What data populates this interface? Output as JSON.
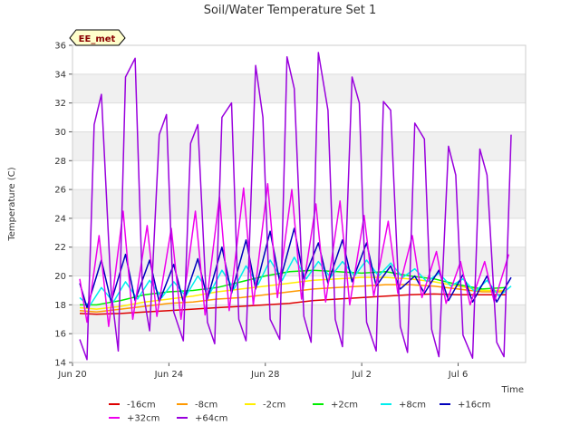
{
  "chart_data": {
    "type": "line",
    "title": "Soil/Water Temperature Set 1",
    "xlabel": "Time",
    "ylabel": "Temperature (C)",
    "badge": "EE_met",
    "x_unit": "days since Jun 20",
    "xlim": [
      0,
      18.8
    ],
    "ylim": [
      14,
      36
    ],
    "yticks": [
      14,
      16,
      18,
      20,
      22,
      24,
      26,
      28,
      30,
      32,
      34,
      36
    ],
    "xticks": [
      {
        "value": 0,
        "label": "Jun 20"
      },
      {
        "value": 4,
        "label": "Jun 24"
      },
      {
        "value": 8,
        "label": "Jun 28"
      },
      {
        "value": 12,
        "label": "Jul 2"
      },
      {
        "value": 16,
        "label": "Jul 6"
      }
    ],
    "grid": true,
    "legend_position": "bottom",
    "series": [
      {
        "name": "-16cm",
        "color": "#dd0000",
        "width": 1.5,
        "x": [
          0.3,
          1,
          2,
          3,
          4,
          5,
          6,
          7,
          8,
          9,
          10,
          11,
          12,
          13,
          14,
          15,
          16,
          17,
          18
        ],
        "y": [
          17.4,
          17.35,
          17.4,
          17.5,
          17.6,
          17.7,
          17.8,
          17.9,
          18.0,
          18.1,
          18.3,
          18.4,
          18.5,
          18.6,
          18.7,
          18.75,
          18.7,
          18.7,
          18.7
        ]
      },
      {
        "name": "-8cm",
        "color": "#ff9900",
        "width": 1.5,
        "x": [
          0.3,
          1,
          2,
          3,
          4,
          5,
          6,
          7,
          8,
          9,
          10,
          11,
          12,
          13,
          14,
          15,
          16,
          17,
          18
        ],
        "y": [
          17.6,
          17.5,
          17.7,
          17.9,
          18.1,
          18.2,
          18.4,
          18.5,
          18.7,
          18.9,
          19.1,
          19.2,
          19.3,
          19.4,
          19.4,
          19.3,
          19.1,
          18.9,
          18.9
        ]
      },
      {
        "name": "-2cm",
        "color": "#ffee00",
        "width": 1.5,
        "x": [
          0.3,
          1,
          2,
          3,
          4,
          5,
          6,
          7,
          8,
          9,
          10,
          11,
          12,
          13,
          14,
          15,
          16,
          17,
          18
        ],
        "y": [
          17.8,
          17.7,
          17.9,
          18.2,
          18.4,
          18.6,
          18.9,
          19.1,
          19.3,
          19.5,
          19.7,
          19.8,
          19.9,
          19.9,
          19.8,
          19.6,
          19.3,
          19.0,
          19.0
        ]
      },
      {
        "name": "+2cm",
        "color": "#00ee00",
        "width": 1.5,
        "x": [
          0.3,
          1,
          2,
          3,
          4,
          5,
          6,
          7,
          8,
          9,
          10,
          11,
          12,
          13,
          14,
          15,
          16,
          17,
          18
        ],
        "y": [
          18.0,
          18.0,
          18.3,
          18.7,
          18.9,
          19.0,
          19.2,
          19.6,
          20.0,
          20.3,
          20.4,
          20.3,
          20.2,
          20.3,
          20.0,
          19.8,
          19.4,
          19.1,
          19.2
        ]
      },
      {
        "name": "+8cm",
        "color": "#00eeee",
        "width": 1.5,
        "x": [
          0.3,
          0.7,
          1.2,
          1.7,
          2.2,
          2.7,
          3.2,
          3.7,
          4.2,
          4.7,
          5.2,
          5.7,
          6.2,
          6.7,
          7.2,
          7.7,
          8.2,
          8.7,
          9.2,
          9.7,
          10.2,
          10.7,
          11.2,
          11.7,
          12.2,
          12.7,
          13.2,
          13.7,
          14.2,
          14.7,
          15.2,
          15.7,
          16.2,
          16.7,
          17.2,
          17.7,
          18.2
        ],
        "y": [
          18.5,
          17.9,
          19.2,
          18.2,
          19.6,
          18.4,
          19.7,
          18.5,
          19.6,
          18.6,
          20.0,
          18.8,
          20.4,
          19.1,
          20.7,
          19.4,
          21.1,
          19.7,
          21.3,
          19.8,
          21.0,
          19.9,
          21.0,
          20.0,
          21.1,
          20.0,
          20.9,
          19.9,
          20.5,
          19.6,
          20.2,
          19.3,
          19.8,
          18.9,
          19.7,
          18.6,
          19.3
        ]
      },
      {
        "name": "+16cm",
        "color": "#0000bb",
        "width": 1.5,
        "x": [
          0.3,
          0.6,
          1.2,
          1.6,
          2.2,
          2.6,
          3.2,
          3.6,
          4.2,
          4.6,
          5.2,
          5.6,
          6.2,
          6.6,
          7.2,
          7.6,
          8.2,
          8.6,
          9.2,
          9.6,
          10.2,
          10.6,
          11.2,
          11.6,
          12.2,
          12.6,
          13.2,
          13.6,
          14.2,
          14.6,
          15.2,
          15.6,
          16.2,
          16.6,
          17.2,
          17.6,
          18.2
        ],
        "y": [
          19.5,
          17.8,
          21.1,
          18.2,
          21.5,
          18.3,
          21.1,
          18.2,
          20.8,
          18.2,
          21.2,
          18.4,
          22.0,
          18.8,
          22.5,
          19.1,
          23.1,
          19.6,
          23.3,
          19.8,
          22.3,
          19.5,
          22.5,
          19.6,
          22.3,
          19.3,
          20.7,
          19.1,
          20.0,
          18.8,
          20.4,
          18.3,
          20.1,
          18.2,
          20.0,
          18.2,
          19.9
        ]
      },
      {
        "name": "+32cm",
        "color": "#ee00ee",
        "width": 1.5,
        "x": [
          0.3,
          0.6,
          1.1,
          1.5,
          2.1,
          2.5,
          3.1,
          3.5,
          4.1,
          4.5,
          5.1,
          5.5,
          6.1,
          6.5,
          7.1,
          7.5,
          8.1,
          8.5,
          9.1,
          9.5,
          10.1,
          10.5,
          11.1,
          11.5,
          12.1,
          12.5,
          13.1,
          13.5,
          14.1,
          14.5,
          15.1,
          15.5,
          16.1,
          16.5,
          17.1,
          17.5,
          18.1
        ],
        "y": [
          19.8,
          16.8,
          22.8,
          16.5,
          24.5,
          17.0,
          23.5,
          17.2,
          23.3,
          17.0,
          24.5,
          17.3,
          25.5,
          17.6,
          26.1,
          18.0,
          26.4,
          18.5,
          26.0,
          18.4,
          25.0,
          18.2,
          25.2,
          18.0,
          24.2,
          18.6,
          23.8,
          18.8,
          22.8,
          18.5,
          21.7,
          18.1,
          21.0,
          18.0,
          21.0,
          18.2,
          21.5
        ]
      },
      {
        "name": "+64cm",
        "color": "#9900dd",
        "width": 1.5,
        "x": [
          0.3,
          0.6,
          0.9,
          1.2,
          1.6,
          1.9,
          2.2,
          2.6,
          2.9,
          3.2,
          3.6,
          3.9,
          4.2,
          4.6,
          4.9,
          5.2,
          5.6,
          5.9,
          6.2,
          6.6,
          6.9,
          7.2,
          7.6,
          7.9,
          8.2,
          8.6,
          8.9,
          9.2,
          9.6,
          9.9,
          10.2,
          10.6,
          10.9,
          11.2,
          11.6,
          11.9,
          12.2,
          12.6,
          12.9,
          13.2,
          13.6,
          13.9,
          14.2,
          14.6,
          14.9,
          15.2,
          15.6,
          15.9,
          16.2,
          16.6,
          16.9,
          17.2,
          17.6,
          17.9,
          18.2
        ],
        "y": [
          15.6,
          14.2,
          30.5,
          32.6,
          19.0,
          14.8,
          33.8,
          35.1,
          19.2,
          16.2,
          29.8,
          31.2,
          17.5,
          15.5,
          29.2,
          30.5,
          16.8,
          15.3,
          31.0,
          32.0,
          17.0,
          15.5,
          34.6,
          31.0,
          17.0,
          15.6,
          35.2,
          33.0,
          17.2,
          15.4,
          35.5,
          31.5,
          17.0,
          15.1,
          33.8,
          32.0,
          16.8,
          14.8,
          32.1,
          31.5,
          16.5,
          14.7,
          30.6,
          29.5,
          16.3,
          14.4,
          29.0,
          27.0,
          15.9,
          14.3,
          28.8,
          27.0,
          15.4,
          14.4,
          29.8
        ]
      }
    ]
  }
}
